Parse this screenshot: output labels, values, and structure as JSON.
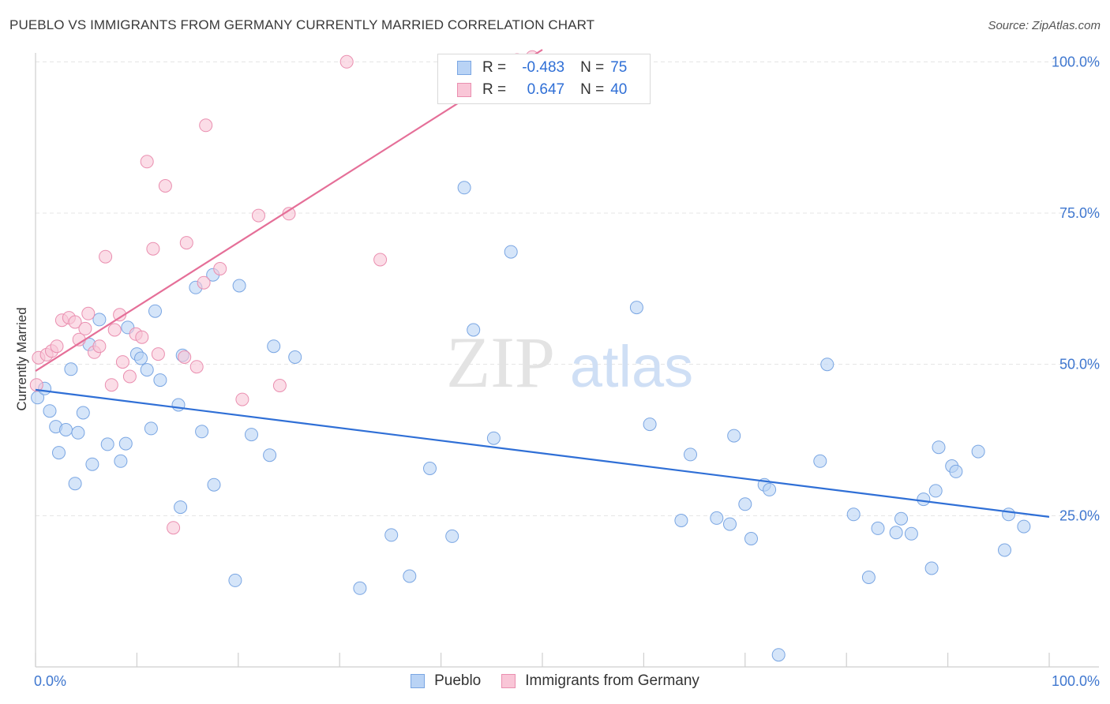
{
  "header": {
    "title": "PUEBLO VS IMMIGRANTS FROM GERMANY CURRENTLY MARRIED CORRELATION CHART",
    "source": "Source: ZipAtlas.com"
  },
  "watermark": {
    "zip": "ZIP",
    "atlas": "atlas"
  },
  "legend_top": {
    "rows": [
      {
        "r_label": "R =",
        "r_value": "-0.483",
        "n_label": "N =",
        "n_value": "75",
        "color": "#b9d3f5",
        "border": "#7aa6e3"
      },
      {
        "r_label": "R =",
        "r_value": "0.647",
        "n_label": "N =",
        "n_value": "40",
        "color": "#f9c6d7",
        "border": "#ea8fb0"
      }
    ]
  },
  "legend_bottom": {
    "items": [
      {
        "label": "Pueblo",
        "color": "#b9d3f5",
        "border": "#7aa6e3"
      },
      {
        "label": "Immigrants from Germany",
        "color": "#f9c6d7",
        "border": "#ea8fb0"
      }
    ]
  },
  "chart_data": {
    "type": "scatter",
    "title": "PUEBLO VS IMMIGRANTS FROM GERMANY CURRENTLY MARRIED CORRELATION CHART",
    "xlabel": "",
    "ylabel": "Currently Married",
    "xlim": [
      0,
      100
    ],
    "ylim": [
      0,
      102
    ],
    "x_tick_labels": [
      {
        "value": 0,
        "label": "0.0%"
      },
      {
        "value": 100,
        "label": "100.0%"
      }
    ],
    "y_tick_labels": [
      {
        "value": 25,
        "label": "25.0%"
      },
      {
        "value": 50,
        "label": "50.0%"
      },
      {
        "value": 75,
        "label": "75.0%"
      },
      {
        "value": 100,
        "label": "100.0%"
      }
    ],
    "grid": true,
    "series": [
      {
        "name": "Pueblo",
        "color": "#b9d3f5",
        "edge": "#7aa6e3",
        "line_color": "#2f6fd6",
        "trend": {
          "x": [
            0,
            100
          ],
          "y": [
            45.8,
            24.8
          ]
        },
        "points": [
          [
            0.2,
            44.5
          ],
          [
            0.9,
            46.0
          ],
          [
            1.4,
            42.3
          ],
          [
            2.0,
            39.7
          ],
          [
            2.3,
            35.4
          ],
          [
            3.0,
            39.2
          ],
          [
            3.5,
            49.2
          ],
          [
            3.9,
            30.3
          ],
          [
            4.2,
            38.7
          ],
          [
            4.7,
            42.0
          ],
          [
            5.3,
            53.3
          ],
          [
            5.6,
            33.5
          ],
          [
            6.3,
            57.4
          ],
          [
            7.1,
            36.8
          ],
          [
            8.4,
            34.0
          ],
          [
            8.9,
            36.9
          ],
          [
            9.1,
            56.1
          ],
          [
            10.0,
            51.7
          ],
          [
            10.4,
            51.0
          ],
          [
            11.0,
            49.1
          ],
          [
            11.4,
            39.4
          ],
          [
            11.8,
            58.8
          ],
          [
            12.3,
            47.4
          ],
          [
            14.1,
            43.3
          ],
          [
            14.3,
            26.4
          ],
          [
            14.5,
            51.5
          ],
          [
            15.8,
            62.7
          ],
          [
            16.4,
            38.9
          ],
          [
            17.5,
            64.8
          ],
          [
            17.6,
            30.1
          ],
          [
            19.7,
            14.3
          ],
          [
            20.1,
            63.0
          ],
          [
            21.3,
            38.4
          ],
          [
            23.1,
            35.0
          ],
          [
            23.5,
            53.0
          ],
          [
            25.6,
            51.2
          ],
          [
            32.0,
            13.0
          ],
          [
            35.1,
            21.8
          ],
          [
            36.9,
            15.0
          ],
          [
            38.9,
            32.8
          ],
          [
            41.1,
            21.6
          ],
          [
            42.3,
            79.2
          ],
          [
            43.2,
            55.7
          ],
          [
            45.2,
            37.8
          ],
          [
            46.9,
            68.6
          ],
          [
            59.3,
            59.4
          ],
          [
            60.6,
            40.1
          ],
          [
            63.7,
            24.2
          ],
          [
            64.6,
            35.1
          ],
          [
            67.2,
            24.6
          ],
          [
            68.5,
            23.6
          ],
          [
            68.9,
            38.2
          ],
          [
            70.0,
            26.9
          ],
          [
            70.6,
            21.2
          ],
          [
            71.9,
            30.1
          ],
          [
            72.4,
            29.3
          ],
          [
            73.3,
            2.0
          ],
          [
            77.4,
            34.0
          ],
          [
            78.1,
            50.0
          ],
          [
            80.7,
            25.2
          ],
          [
            82.2,
            14.8
          ],
          [
            83.1,
            22.9
          ],
          [
            84.9,
            22.2
          ],
          [
            85.4,
            24.5
          ],
          [
            86.4,
            22.0
          ],
          [
            87.6,
            27.7
          ],
          [
            88.4,
            16.3
          ],
          [
            88.8,
            29.1
          ],
          [
            89.1,
            36.3
          ],
          [
            90.4,
            33.2
          ],
          [
            90.8,
            32.3
          ],
          [
            93.0,
            35.6
          ],
          [
            95.6,
            19.3
          ],
          [
            96.0,
            25.2
          ],
          [
            97.5,
            23.2
          ]
        ]
      },
      {
        "name": "Immigrants from Germany",
        "color": "#f9c6d7",
        "edge": "#ea8fb0",
        "line_color": "#e56f98",
        "trend": {
          "x": [
            0,
            50
          ],
          "y": [
            48.9,
            102.0
          ]
        },
        "points": [
          [
            0.1,
            46.6
          ],
          [
            0.3,
            51.1
          ],
          [
            1.1,
            51.6
          ],
          [
            1.6,
            52.2
          ],
          [
            2.1,
            53.0
          ],
          [
            2.6,
            57.3
          ],
          [
            3.3,
            57.7
          ],
          [
            3.9,
            57.0
          ],
          [
            4.3,
            54.1
          ],
          [
            4.9,
            55.9
          ],
          [
            5.2,
            58.4
          ],
          [
            5.8,
            52.0
          ],
          [
            6.3,
            53.0
          ],
          [
            6.9,
            67.8
          ],
          [
            7.5,
            46.6
          ],
          [
            7.8,
            55.7
          ],
          [
            8.3,
            58.2
          ],
          [
            8.6,
            50.4
          ],
          [
            9.3,
            48.0
          ],
          [
            9.9,
            55.0
          ],
          [
            10.5,
            54.5
          ],
          [
            11.0,
            83.5
          ],
          [
            11.6,
            69.1
          ],
          [
            12.1,
            51.7
          ],
          [
            12.8,
            79.5
          ],
          [
            13.6,
            23.0
          ],
          [
            14.7,
            51.2
          ],
          [
            14.9,
            70.1
          ],
          [
            15.9,
            49.6
          ],
          [
            16.6,
            63.5
          ],
          [
            16.8,
            89.5
          ],
          [
            18.2,
            65.8
          ],
          [
            20.4,
            44.2
          ],
          [
            22.0,
            74.6
          ],
          [
            24.1,
            46.5
          ],
          [
            25.0,
            74.9
          ],
          [
            30.7,
            100.0
          ],
          [
            34.0,
            67.3
          ],
          [
            47.5,
            100.3
          ],
          [
            49.0,
            100.8
          ]
        ]
      }
    ]
  }
}
